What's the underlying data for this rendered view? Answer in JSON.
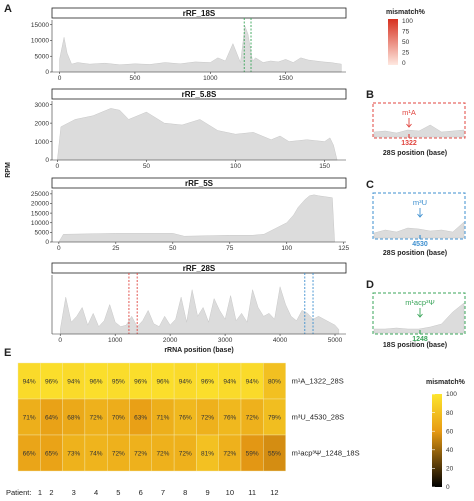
{
  "panel_labels": {
    "A": "A",
    "B": "B",
    "C": "C",
    "D": "D",
    "E": "E"
  },
  "colors": {
    "area": "#dcdcdc",
    "red": "#e0453f",
    "blue": "#3d8fcf",
    "green": "#3aa55a",
    "heat_low": "#000000",
    "heat_mid": "#e79a14",
    "heat_high": "#fde52e"
  },
  "chart_data": [
    {
      "id": "rRF_18S",
      "type": "area",
      "title": "rRF_18S",
      "xlim": [
        -50,
        1900
      ],
      "ylim": [
        0,
        16500
      ],
      "xticks": [
        0,
        500,
        1000,
        1500
      ],
      "yticks": [
        0,
        5000,
        10000,
        15000
      ],
      "x": [
        0,
        30,
        50,
        80,
        120,
        200,
        300,
        400,
        500,
        600,
        700,
        800,
        900,
        1000,
        1050,
        1100,
        1150,
        1200,
        1230,
        1250,
        1280,
        1300,
        1350,
        1400,
        1450,
        1500,
        1550,
        1600,
        1650,
        1700,
        1750,
        1800,
        1869
      ],
      "y": [
        4000,
        11000,
        6000,
        2500,
        3000,
        2500,
        2800,
        2300,
        2600,
        2400,
        3000,
        2600,
        3200,
        3000,
        4500,
        3500,
        9000,
        3000,
        14500,
        12000,
        3500,
        4500,
        3000,
        3500,
        3200,
        4000,
        3000,
        4500,
        3800,
        3500,
        3200,
        3000,
        2500
      ],
      "highlight": {
        "color": "green",
        "x": [
          1225,
          1270
        ]
      }
    },
    {
      "id": "rRF_5.8S",
      "type": "area",
      "title": "rRF_5.8S",
      "xlim": [
        -3,
        162
      ],
      "ylim": [
        0,
        3200
      ],
      "xticks": [
        0,
        50,
        100,
        150
      ],
      "yticks": [
        0,
        1000,
        2000,
        3000
      ],
      "x": [
        0,
        2,
        10,
        20,
        30,
        35,
        40,
        50,
        60,
        70,
        80,
        90,
        100,
        110,
        120,
        125,
        130,
        140,
        150,
        153,
        155,
        157
      ],
      "y": [
        0,
        1800,
        2200,
        2400,
        2800,
        2700,
        2200,
        2600,
        2000,
        1900,
        2200,
        1600,
        1400,
        1500,
        1100,
        1300,
        1000,
        1100,
        1000,
        1200,
        800,
        0
      ]
    },
    {
      "id": "rRF_5S",
      "type": "area",
      "title": "rRF_5S",
      "xlim": [
        -3,
        126
      ],
      "ylim": [
        0,
        27000
      ],
      "xticks": [
        0,
        25,
        50,
        75,
        100,
        125
      ],
      "yticks": [
        0,
        5000,
        10000,
        15000,
        20000,
        25000
      ],
      "x": [
        0,
        2,
        25,
        50,
        55,
        75,
        85,
        90,
        95,
        100,
        103,
        105,
        108,
        110,
        112,
        114,
        117,
        120,
        121
      ],
      "y": [
        0,
        4000,
        4500,
        4500,
        3000,
        3500,
        3500,
        4000,
        7000,
        10000,
        14000,
        18000,
        22000,
        24000,
        24500,
        24000,
        23500,
        23000,
        0
      ]
    },
    {
      "id": "rRF_28S",
      "type": "area",
      "title": "rRF_28S",
      "xlim": [
        -150,
        5200
      ],
      "ylim": [
        0,
        40000
      ],
      "xticks": [
        0,
        1000,
        2000,
        3000,
        4000,
        5000
      ],
      "xlabel": "rRNA position (base)",
      "x": [
        0,
        100,
        200,
        300,
        400,
        500,
        600,
        700,
        800,
        900,
        1000,
        1100,
        1200,
        1300,
        1400,
        1500,
        1600,
        1700,
        1800,
        1900,
        2000,
        2100,
        2200,
        2300,
        2400,
        2500,
        2600,
        2700,
        2800,
        2900,
        3000,
        3100,
        3200,
        3300,
        3400,
        3500,
        3600,
        3700,
        3800,
        3900,
        4000,
        4100,
        4200,
        4300,
        4400,
        4500,
        4600,
        4700,
        4800,
        4900,
        5000,
        5070
      ],
      "y": [
        3000,
        25000,
        8000,
        12000,
        18000,
        6000,
        14000,
        5000,
        9000,
        20000,
        8000,
        5000,
        6000,
        12000,
        5000,
        9000,
        16000,
        7000,
        5000,
        12000,
        6000,
        10000,
        25000,
        8000,
        30000,
        12000,
        18000,
        8000,
        24000,
        16000,
        10000,
        26000,
        9000,
        14000,
        8000,
        30000,
        18000,
        12000,
        14000,
        10000,
        32000,
        20000,
        12000,
        9000,
        16000,
        14000,
        10000,
        12000,
        10000,
        8000,
        6000,
        3000
      ],
      "highlight": [
        {
          "color": "red",
          "x": [
            1250,
            1400
          ]
        },
        {
          "color": "blue",
          "x": [
            4450,
            4600
          ]
        }
      ]
    }
  ],
  "ylabel_A": "RPM",
  "legend_top": {
    "title": "mismatch%",
    "ticks": [
      "100",
      "75",
      "50",
      "25",
      "0"
    ]
  },
  "zoom_panels": [
    {
      "id": "B",
      "color": "red",
      "mark": "m¹A",
      "pos": "1322",
      "xlabel": "28S position (base)"
    },
    {
      "id": "C",
      "color": "blue",
      "mark": "m³U",
      "pos": "4530",
      "xlabel": "28S position (base)"
    },
    {
      "id": "D",
      "color": "green",
      "mark": "m¹acp³Ψ",
      "pos": "1248",
      "xlabel": "18S position (base)"
    }
  ],
  "heatmap": {
    "type": "heatmap",
    "rows": [
      "m¹A_1322_28S",
      "m³U_4530_28S",
      "m¹acp³Ψ_1248_18S"
    ],
    "x_title": "Patient:",
    "columns": [
      "1",
      "2",
      "3",
      "4",
      "5",
      "6",
      "7",
      "8",
      "9",
      "10",
      "11",
      "12"
    ],
    "values": [
      [
        94,
        96,
        94,
        96,
        95,
        96,
        96,
        94,
        96,
        94,
        94,
        80
      ],
      [
        71,
        64,
        68,
        72,
        70,
        63,
        71,
        76,
        72,
        76,
        72,
        79
      ],
      [
        66,
        65,
        73,
        74,
        72,
        72,
        72,
        72,
        81,
        72,
        59,
        55
      ]
    ],
    "legend": {
      "title": "mismatch%",
      "ticks": [
        "100",
        "80",
        "60",
        "40",
        "20",
        "0"
      ],
      "range": [
        0,
        100
      ]
    }
  }
}
